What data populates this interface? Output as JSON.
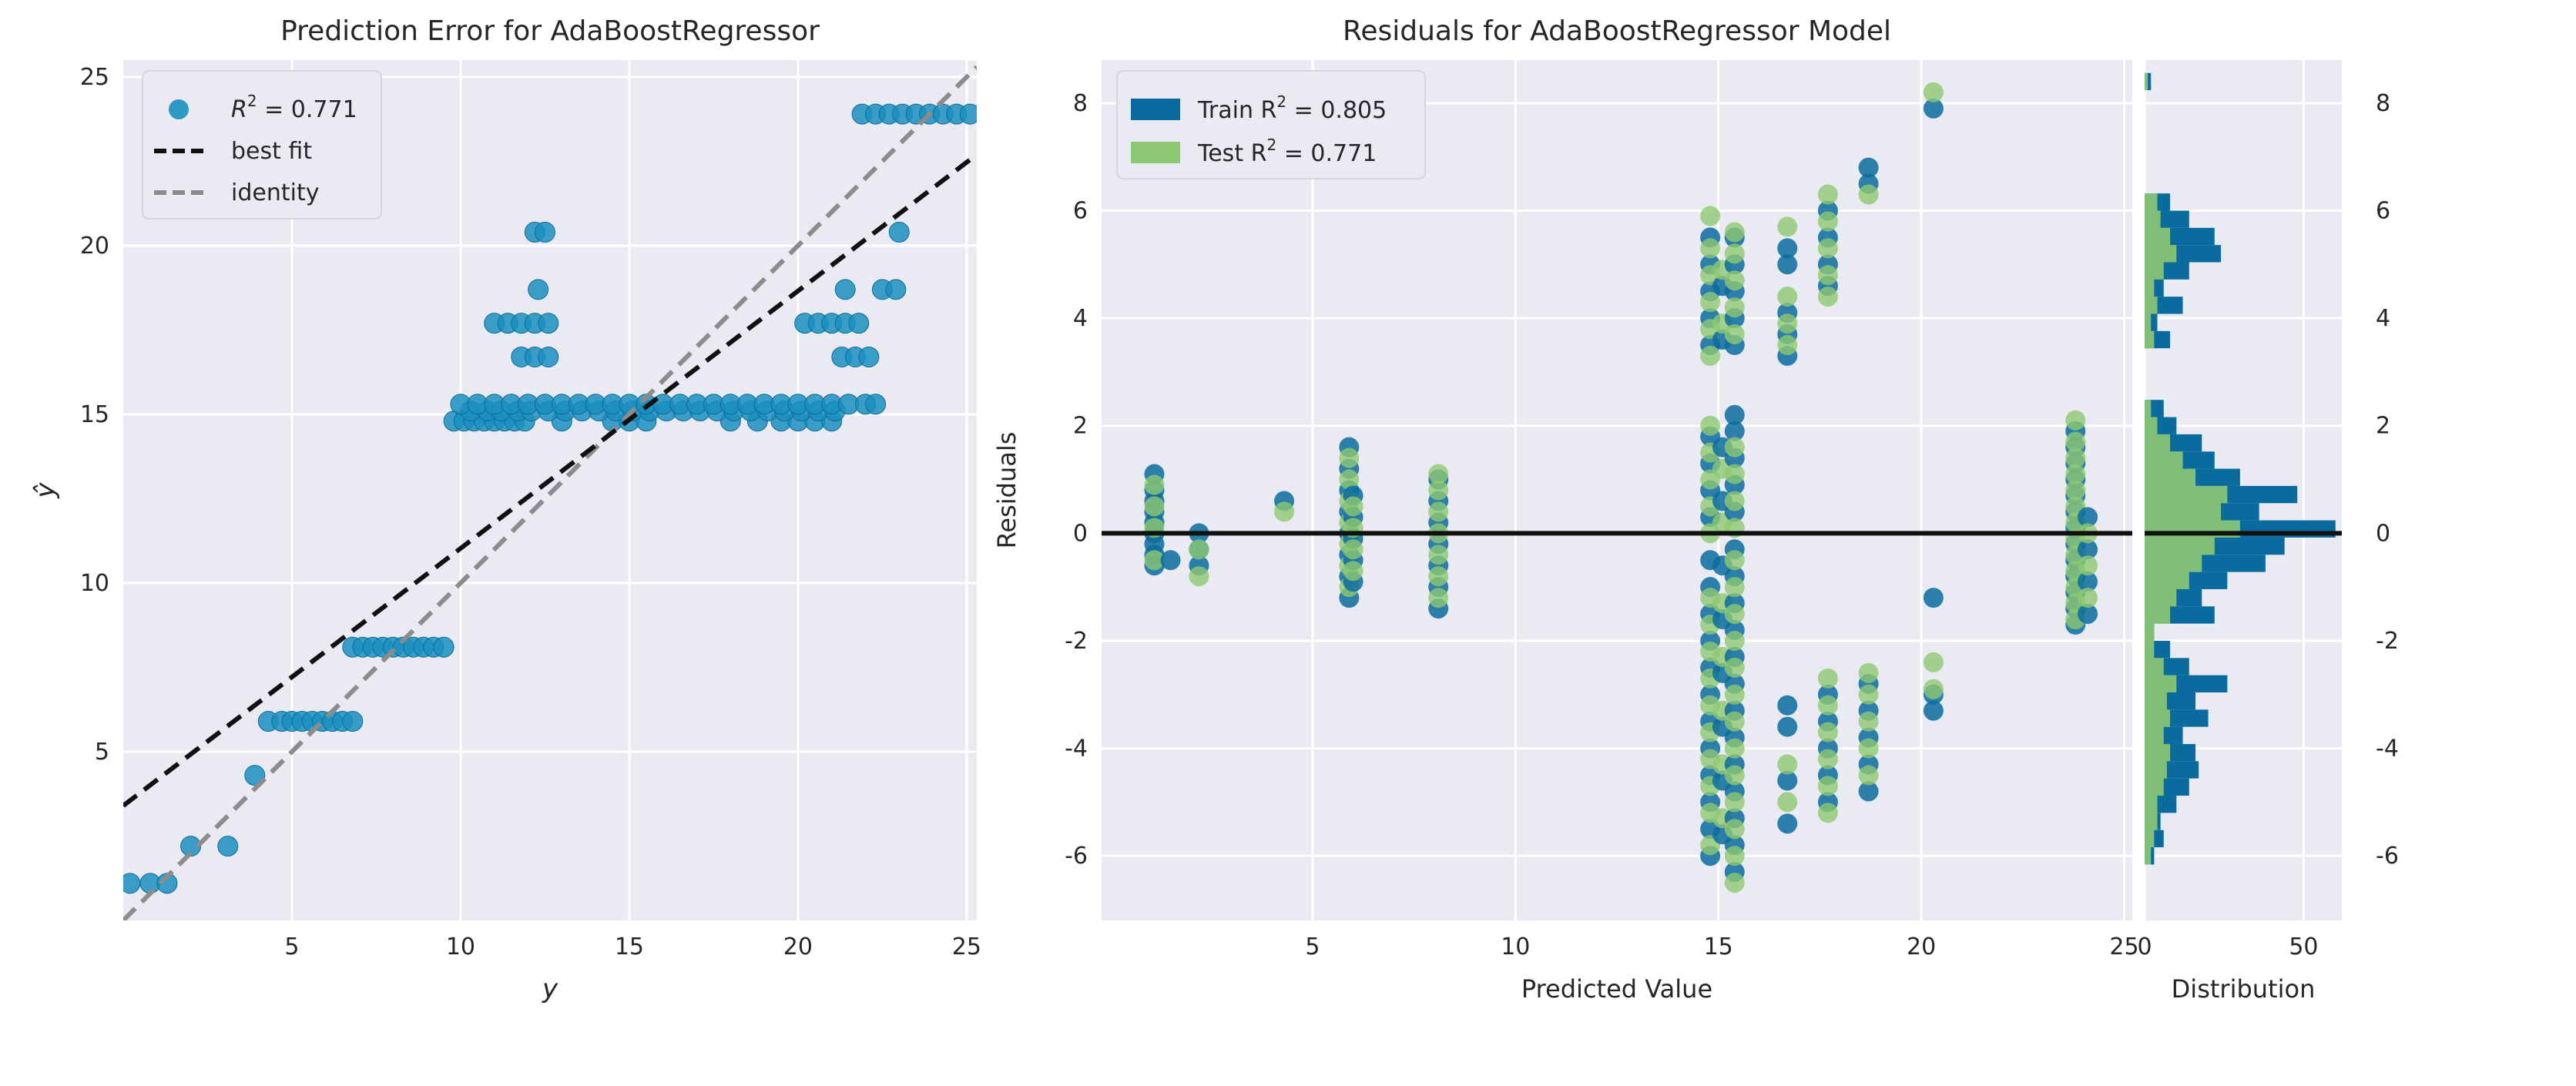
{
  "chart_data": [
    {
      "id": "prediction_error",
      "type": "scatter",
      "title": "Prediction Error for AdaBoostRegressor",
      "xlabel": "y",
      "ylabel": "ŷ",
      "xlim": [
        0,
        25.3
      ],
      "ylim": [
        0,
        25.5
      ],
      "xticks": [
        5,
        10,
        15,
        20,
        25
      ],
      "yticks": [
        5,
        10,
        15,
        20,
        25
      ],
      "grid": true,
      "legend_position": "top-left",
      "legend": [
        {
          "label": "R² = 0.771",
          "text": "R",
          "sup": "2",
          "tail": " = 0.771",
          "kind": "marker",
          "color": "#1a8fbf"
        },
        {
          "label": "best fit",
          "kind": "line",
          "color": "#111111",
          "dash": true
        },
        {
          "label": "identity",
          "kind": "line",
          "color": "#8c8c8c",
          "dash": true
        }
      ],
      "lines": {
        "best_fit": {
          "x": [
            0,
            25.3
          ],
          "y": [
            3.4,
            22.7
          ]
        },
        "identity": {
          "x": [
            0,
            25.3
          ],
          "y": [
            0,
            25.3
          ]
        }
      },
      "point_color": "#1a8fbf",
      "groups": [
        {
          "yhat": 1.1,
          "x": [
            0.2,
            0.8,
            1.3
          ]
        },
        {
          "yhat": 2.2,
          "x": [
            2.0,
            3.1
          ]
        },
        {
          "yhat": 4.3,
          "x": [
            3.9
          ]
        },
        {
          "yhat": 5.9,
          "x": [
            4.3,
            4.7,
            5.0,
            5.3,
            5.6,
            5.9,
            6.2,
            6.5,
            6.8
          ]
        },
        {
          "yhat": 8.1,
          "x": [
            6.8,
            7.1,
            7.4,
            7.7,
            8.0,
            8.3,
            8.6,
            8.9,
            9.2,
            9.5
          ]
        },
        {
          "yhat": 14.8,
          "x": [
            9.8,
            10.1,
            10.4,
            10.7,
            11.0,
            11.3,
            11.6,
            11.9,
            13.0,
            14.5,
            15.0,
            15.5,
            18.0,
            18.8,
            19.5,
            20.0,
            20.5,
            21.0
          ]
        },
        {
          "yhat": 15.1,
          "x": [
            10.3,
            10.8,
            11.2,
            11.7,
            12.1,
            12.6,
            13.1,
            13.6,
            14.1,
            14.6,
            15.1,
            15.6,
            16.1,
            16.6,
            17.1,
            17.6,
            18.1,
            18.6,
            19.1,
            19.6,
            20.1,
            20.6,
            21.1
          ]
        },
        {
          "yhat": 15.3,
          "x": [
            10.0,
            10.5,
            11.0,
            11.5,
            12.0,
            12.5,
            13.0,
            13.5,
            14.0,
            14.5,
            15.0,
            15.5,
            16.0,
            16.5,
            17.0,
            17.5,
            18.0,
            18.5,
            19.0,
            19.5,
            20.0,
            20.5,
            21.0,
            21.5,
            22.0,
            22.3
          ]
        },
        {
          "yhat": 16.7,
          "x": [
            11.8,
            12.2,
            12.6,
            21.3,
            21.7,
            22.1
          ]
        },
        {
          "yhat": 17.7,
          "x": [
            11.0,
            11.4,
            11.8,
            12.2,
            12.6,
            20.2,
            20.6,
            21.0,
            21.4,
            21.8
          ]
        },
        {
          "yhat": 18.7,
          "x": [
            12.3,
            21.4,
            22.5,
            22.9
          ]
        },
        {
          "yhat": 20.4,
          "x": [
            12.2,
            12.5,
            23.0
          ]
        },
        {
          "yhat": 23.9,
          "x": [
            21.9,
            22.3,
            22.7,
            23.1,
            23.5,
            23.9,
            24.3,
            24.7,
            25.1
          ]
        }
      ]
    },
    {
      "id": "residuals",
      "type": "scatter",
      "title": "Residuals for AdaBoostRegressor Model",
      "xlabel": "Predicted Value",
      "ylabel": "Residuals",
      "xlim": [
        -0.2,
        25.2
      ],
      "ylim": [
        -7.2,
        8.8
      ],
      "xticks": [
        5,
        10,
        15,
        20,
        25
      ],
      "yticks": [
        -6,
        -4,
        -2,
        0,
        2,
        4,
        6,
        8
      ],
      "grid": true,
      "zero_line": 0,
      "legend_position": "top-left",
      "legend": [
        {
          "label": "Train R² = 0.805",
          "text": "Train R",
          "sup": "2",
          "tail": " = 0.805",
          "color": "#0a6c9e"
        },
        {
          "label": "Test R² = 0.771",
          "text": "Test R",
          "sup": "2",
          "tail": " = 0.771",
          "color": "#8ec872"
        }
      ],
      "train_color": "#0a6c9e",
      "test_color": "#8ec872",
      "columns": [
        {
          "x": 1.1,
          "train": [
            -0.6,
            -0.4,
            -0.2,
            0.0,
            0.2,
            0.4,
            0.6,
            0.8,
            1.1
          ],
          "test": [
            -0.5,
            0.1,
            0.5,
            0.9
          ]
        },
        {
          "x": 1.5,
          "train": [
            -0.5
          ],
          "test": []
        },
        {
          "x": 2.2,
          "train": [
            -0.6,
            -0.3,
            0.0
          ],
          "test": [
            -0.8,
            -0.3
          ]
        },
        {
          "x": 4.3,
          "train": [
            0.6
          ],
          "test": [
            0.4
          ]
        },
        {
          "x": 5.9,
          "train": [
            -1.2,
            -0.8,
            -0.4,
            0.0,
            0.4,
            0.8,
            1.2,
            1.6
          ],
          "test": [
            -1.0,
            -0.6,
            -0.2,
            0.2,
            0.6,
            1.0,
            1.4
          ]
        },
        {
          "x": 6.0,
          "train": [
            -0.9,
            -0.5,
            -0.1,
            0.3,
            0.7
          ],
          "test": [
            -0.7,
            -0.3,
            0.1,
            0.5
          ]
        },
        {
          "x": 8.1,
          "train": [
            -1.4,
            -1.0,
            -0.6,
            -0.2,
            0.2,
            0.6,
            1.0
          ],
          "test": [
            -1.2,
            -0.8,
            -0.4,
            0.0,
            0.4,
            0.8,
            1.1
          ]
        },
        {
          "x": 14.8,
          "train": [
            -6.0,
            -5.5,
            -5.0,
            -4.5,
            -4.0,
            -3.5,
            -3.0,
            -2.5,
            -2.0,
            -1.5,
            -1.0,
            -0.5,
            0.3,
            0.8,
            1.3,
            1.8,
            3.5,
            4.0,
            4.5,
            5.0,
            5.5
          ],
          "test": [
            -5.8,
            -5.2,
            -4.7,
            -4.2,
            -3.7,
            -3.2,
            -2.7,
            -2.2,
            -1.7,
            -1.2,
            0.0,
            0.5,
            1.0,
            1.5,
            2.0,
            3.3,
            3.8,
            4.3,
            4.8,
            5.3,
            5.9
          ]
        },
        {
          "x": 15.1,
          "train": [
            -5.6,
            -4.6,
            -3.6,
            -2.6,
            -1.6,
            -0.6,
            0.6,
            1.6,
            3.6,
            4.6
          ],
          "test": [
            -5.3,
            -4.3,
            -3.3,
            -2.3,
            -1.3,
            0.2,
            1.2,
            3.9,
            4.9
          ]
        },
        {
          "x": 15.4,
          "train": [
            -6.3,
            -5.8,
            -5.3,
            -4.8,
            -4.3,
            -3.8,
            -3.3,
            -2.8,
            -2.3,
            -1.8,
            -1.3,
            -0.8,
            -0.3,
            0.4,
            0.9,
            1.4,
            1.9,
            2.2,
            3.5,
            4.0,
            4.5,
            5.0,
            5.5
          ],
          "test": [
            -6.5,
            -6.0,
            -5.5,
            -5.0,
            -4.5,
            -4.0,
            -3.5,
            -3.0,
            -2.5,
            -2.0,
            -1.5,
            -1.0,
            -0.5,
            0.1,
            0.6,
            1.1,
            1.6,
            3.7,
            4.2,
            4.7,
            5.2,
            5.6
          ]
        },
        {
          "x": 16.7,
          "train": [
            -5.4,
            -4.6,
            -3.6,
            -3.2,
            3.3,
            3.7,
            4.1,
            5.0,
            5.3
          ],
          "test": [
            -5.0,
            -4.3,
            3.5,
            3.9,
            4.4,
            5.7
          ]
        },
        {
          "x": 17.7,
          "train": [
            -5.0,
            -4.5,
            -4.0,
            -3.5,
            -3.0,
            4.6,
            5.0,
            5.5,
            6.0
          ],
          "test": [
            -5.2,
            -4.7,
            -4.2,
            -3.7,
            -3.2,
            -2.7,
            4.4,
            4.8,
            5.3,
            5.8,
            6.3
          ]
        },
        {
          "x": 18.7,
          "train": [
            -4.8,
            -4.3,
            -3.8,
            -3.3,
            -2.8,
            6.5,
            6.8
          ],
          "test": [
            -4.5,
            -4.0,
            -3.5,
            -3.0,
            -2.6,
            6.3
          ]
        },
        {
          "x": 20.3,
          "train": [
            -3.3,
            -3.0,
            -1.2,
            7.9
          ],
          "test": [
            -2.9,
            -2.4,
            8.2
          ]
        },
        {
          "x": 23.8,
          "train": [
            -1.7,
            -1.4,
            -1.1,
            -0.8,
            -0.5,
            -0.2,
            0.1,
            0.4,
            0.7,
            1.0,
            1.3,
            1.6,
            1.9
          ],
          "test": [
            -1.6,
            -1.3,
            -1.0,
            -0.7,
            -0.4,
            -0.1,
            0.2,
            0.5,
            0.8,
            1.1,
            1.4,
            1.7,
            2.1
          ]
        },
        {
          "x": 24.1,
          "train": [
            -1.5,
            -0.9,
            -0.3,
            0.3
          ],
          "test": [
            -1.2,
            -0.6,
            0.0
          ]
        }
      ]
    },
    {
      "id": "distribution",
      "type": "bar",
      "orientation": "horizontal",
      "xlabel": "Distribution",
      "xlim": [
        0,
        62
      ],
      "ylim": [
        -7.2,
        8.8
      ],
      "xticks": [
        0,
        50
      ],
      "yticks": [
        -6,
        -4,
        -2,
        0,
        2,
        4,
        6,
        8
      ],
      "bin_width": 0.32,
      "bins": [
        -6.16,
        -5.84,
        -5.52,
        -5.2,
        -4.88,
        -4.56,
        -4.24,
        -3.92,
        -3.6,
        -3.28,
        -2.96,
        -2.64,
        -2.32,
        -2.0,
        -1.68,
        -1.36,
        -1.04,
        -0.72,
        -0.4,
        -0.08,
        0.24,
        0.56,
        0.88,
        1.2,
        1.52,
        1.84,
        2.16,
        3.44,
        3.76,
        4.08,
        4.4,
        4.72,
        5.04,
        5.36,
        5.68,
        6.0,
        8.24
      ],
      "series": [
        {
          "name": "Train",
          "color": "#0a6c9e",
          "values": [
            3,
            6,
            5,
            10,
            14,
            17,
            16,
            12,
            20,
            16,
            26,
            14,
            8,
            3,
            22,
            18,
            26,
            38,
            44,
            60,
            36,
            48,
            30,
            22,
            18,
            10,
            6,
            8,
            4,
            12,
            6,
            14,
            24,
            22,
            14,
            8,
            2
          ]
        },
        {
          "name": "Test",
          "color": "#8ec872",
          "values": [
            2,
            3,
            4,
            4,
            6,
            7,
            8,
            6,
            8,
            7,
            10,
            6,
            3,
            3,
            8,
            10,
            14,
            18,
            22,
            30,
            24,
            26,
            16,
            12,
            8,
            4,
            2,
            3,
            2,
            4,
            3,
            6,
            10,
            8,
            5,
            4,
            1
          ]
        }
      ]
    }
  ]
}
